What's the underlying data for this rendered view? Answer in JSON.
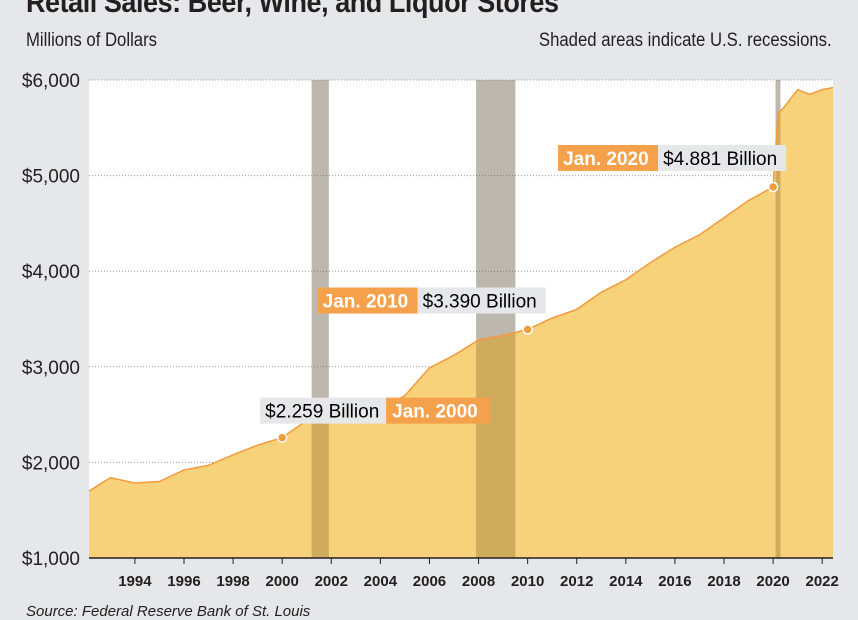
{
  "chart_data": {
    "type": "area",
    "title": "Retail Sales: Beer, Wine, and Liquor Stores",
    "ylabel": "Millions of Dollars",
    "note": "Shaded areas indicate U.S. recessions.",
    "source": "Source: Federal Reserve Bank of St. Louis",
    "xlim": [
      1992.13,
      2022.44
    ],
    "ylim": [
      1000,
      6000
    ],
    "grid": true,
    "y_ticks": [
      {
        "v": 1000,
        "label": "$1,000"
      },
      {
        "v": 2000,
        "label": "$2,000"
      },
      {
        "v": 3000,
        "label": "$3,000"
      },
      {
        "v": 4000,
        "label": "$4,000"
      },
      {
        "v": 5000,
        "label": "$5,000"
      },
      {
        "v": 6000,
        "label": "$6,000"
      }
    ],
    "x_ticks": [
      1994,
      1996,
      1998,
      2000,
      2002,
      2004,
      2006,
      2008,
      2010,
      2012,
      2014,
      2016,
      2018,
      2020,
      2022
    ],
    "recessions": [
      [
        2001.2,
        2001.9
      ],
      [
        2007.9,
        2009.5
      ],
      [
        2020.1,
        2020.3
      ]
    ],
    "x": [
      1992.13,
      1993,
      1994,
      1995,
      1996,
      1997,
      1998,
      1999,
      2000,
      2001,
      2002,
      2003,
      2004,
      2005,
      2006,
      2007,
      2008,
      2009,
      2010,
      2011,
      2012,
      2013,
      2014,
      2015,
      2016,
      2017,
      2018,
      2019,
      2020,
      2020.2,
      2020.4,
      2021,
      2021.5,
      2022,
      2022.44
    ],
    "values": [
      1700,
      1840,
      1785,
      1800,
      1920,
      1970,
      2080,
      2180,
      2259,
      2440,
      2460,
      2440,
      2550,
      2700,
      2990,
      3120,
      3280,
      3330,
      3390,
      3510,
      3600,
      3780,
      3910,
      4090,
      4250,
      4380,
      4560,
      4740,
      4881,
      5650,
      5700,
      5900,
      5850,
      5900,
      5920
    ],
    "annotations": [
      {
        "x": 2000,
        "y": 2259,
        "date": "Jan. 2000",
        "value": "$2.259 Billion"
      },
      {
        "x": 2010,
        "y": 3390,
        "date": "Jan. 2010",
        "value": "$3.390 Billion"
      },
      {
        "x": 2020,
        "y": 4881,
        "date": "Jan. 2020",
        "value": "$4.881 Billion"
      }
    ],
    "colors": {
      "fill": "#f7d27a",
      "line": "#f39a3c",
      "label": "#f5a04a",
      "recession": "#e1e2e3",
      "background": "#e6e7e8"
    }
  }
}
